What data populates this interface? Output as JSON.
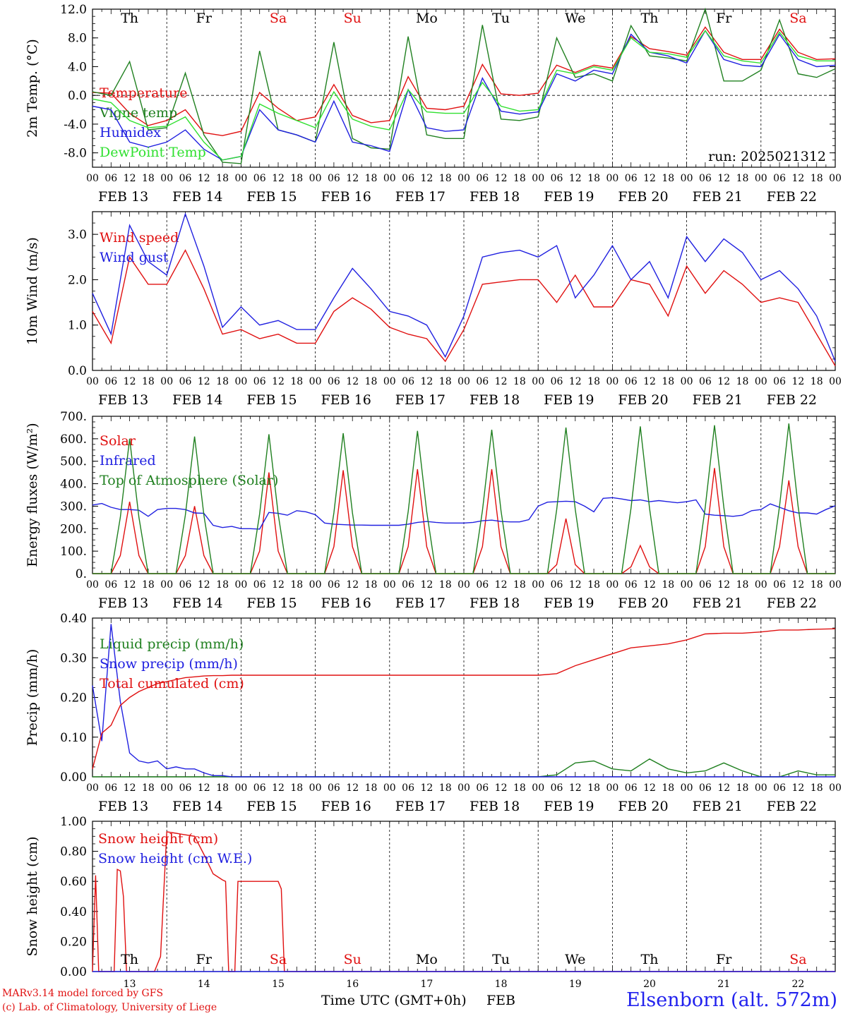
{
  "run_label": "run: 2025021312",
  "x_hour_ticks": [
    "00",
    "06",
    "12",
    "18"
  ],
  "x_final_tick": "00",
  "dates": [
    "FEB 13",
    "FEB 14",
    "FEB 15",
    "FEB 16",
    "FEB 17",
    "FEB 18",
    "FEB 19",
    "FEB 20",
    "FEB 21",
    "FEB 22"
  ],
  "weekdays": [
    "Th",
    "Fr",
    "Sa",
    "Su",
    "Mo",
    "Tu",
    "We",
    "Th",
    "Fr",
    "Sa"
  ],
  "weekday_colors": [
    "#000000",
    "#000000",
    "#e01010",
    "#e01010",
    "#000000",
    "#000000",
    "#000000",
    "#000000",
    "#000000",
    "#e01010"
  ],
  "day_numbers": [
    "13",
    "14",
    "15",
    "16",
    "17",
    "18",
    "19",
    "20",
    "21",
    "22"
  ],
  "footer": {
    "credit_line1": "MARv3.14 model forced by GFS",
    "credit_line2": "(c) Lab. of Climatology, University of Liege",
    "axis_title": "Time UTC (GMT+0h)",
    "month": "FEB",
    "station": "Elsenborn (alt. 572m)"
  },
  "colors": {
    "red": "#e01010",
    "green": "#208020",
    "blue": "#2020e0",
    "lightgreen": "#30e030"
  },
  "chart_data": [
    {
      "type": "line",
      "ylabel": "2m Temp. (°C)",
      "ylim": [
        -10,
        12
      ],
      "yticks": [
        -8,
        -4,
        0,
        4,
        8,
        12
      ],
      "ytick_labels": [
        "-8.0",
        "-4.0",
        "0.0",
        "4.0",
        "8.0",
        "12.0"
      ],
      "zero_line": true,
      "x_hours": [
        0,
        6,
        12,
        18,
        24,
        30,
        36,
        42,
        48,
        54,
        60,
        66,
        72,
        78,
        84,
        90,
        96,
        102,
        108,
        114,
        120,
        126,
        132,
        138,
        144,
        150,
        156,
        162,
        168,
        174,
        180,
        186,
        192,
        198,
        204,
        210,
        216,
        222,
        228,
        234,
        240
      ],
      "series": [
        {
          "name": "Temperature",
          "color": "#e01010",
          "values": [
            0.4,
            0.3,
            -2.5,
            -4.2,
            -3.5,
            -2.0,
            -5.2,
            -5.6,
            -5.0,
            0.4,
            -1.8,
            -3.5,
            -3.0,
            1.5,
            -2.8,
            -3.8,
            -3.5,
            2.6,
            -1.8,
            -2.0,
            -1.5,
            4.3,
            0.2,
            0.0,
            0.3,
            4.2,
            3.2,
            4.2,
            3.8,
            8.2,
            6.5,
            6.1,
            5.6,
            9.5,
            6.0,
            5.0,
            5.0,
            9.2,
            6.0,
            5.0,
            5.1
          ]
        },
        {
          "name": "Vigne temp",
          "color": "#208020",
          "values": [
            0.5,
            0.0,
            4.7,
            -4.8,
            -4.5,
            3.1,
            -5.5,
            -9.3,
            -9.5,
            6.2,
            -4.8,
            -5.5,
            -6.5,
            7.4,
            -6.0,
            -7.3,
            -7.5,
            8.2,
            -5.5,
            -6.0,
            -6.0,
            9.8,
            -3.3,
            -3.5,
            -3.0,
            8.0,
            2.5,
            3.0,
            2.0,
            9.7,
            5.5,
            5.2,
            4.8,
            12.0,
            2.0,
            2.0,
            3.5,
            10.5,
            3.0,
            2.5,
            3.7
          ]
        },
        {
          "name": "Humidex",
          "color": "#2020e0",
          "values": [
            -1.5,
            -2.0,
            -6.5,
            -7.2,
            -6.5,
            -4.8,
            -7.5,
            -9.0,
            -8.5,
            -2.0,
            -4.8,
            -5.5,
            -6.5,
            -0.8,
            -6.5,
            -7.0,
            -7.8,
            0.8,
            -4.5,
            -5.0,
            -4.8,
            2.4,
            -2.2,
            -2.6,
            -2.3,
            3.0,
            2.0,
            3.5,
            3.0,
            8.5,
            6.0,
            5.5,
            4.5,
            9.0,
            5.0,
            4.2,
            4.0,
            8.5,
            5.0,
            4.0,
            4.2
          ]
        },
        {
          "name": "DewPoint Temp",
          "color": "#30e030",
          "values": [
            -0.5,
            -1.0,
            -3.5,
            -4.5,
            -4.3,
            -3.0,
            -6.5,
            -9.0,
            -8.5,
            -1.2,
            -2.5,
            -3.5,
            -4.5,
            0.5,
            -3.3,
            -4.3,
            -4.8,
            0.8,
            -2.3,
            -2.5,
            -2.5,
            1.8,
            -1.5,
            -2.2,
            -2.0,
            3.5,
            3.0,
            4.0,
            3.5,
            8.0,
            6.0,
            5.8,
            5.3,
            9.0,
            5.5,
            4.8,
            4.5,
            8.8,
            5.5,
            4.8,
            4.8
          ]
        }
      ]
    },
    {
      "type": "line",
      "ylabel": "10m Wind (m/s)",
      "ylim": [
        0,
        3.5
      ],
      "yticks": [
        0,
        1,
        2,
        3
      ],
      "ytick_labels": [
        "0.0",
        "1.0",
        "2.0",
        "3.0"
      ],
      "x_hours": [
        0,
        6,
        12,
        18,
        24,
        30,
        36,
        42,
        48,
        54,
        60,
        66,
        72,
        78,
        84,
        90,
        96,
        102,
        108,
        114,
        120,
        126,
        132,
        138,
        144,
        150,
        156,
        162,
        168,
        174,
        180,
        186,
        192,
        198,
        204,
        210,
        216,
        222,
        228,
        234,
        240
      ],
      "series": [
        {
          "name": "Wind speed",
          "color": "#e01010",
          "values": [
            1.3,
            0.6,
            2.5,
            1.9,
            1.9,
            2.65,
            1.8,
            0.8,
            0.9,
            0.7,
            0.8,
            0.6,
            0.6,
            1.3,
            1.6,
            1.35,
            0.95,
            0.8,
            0.7,
            0.2,
            0.9,
            1.9,
            1.95,
            2.0,
            2.0,
            1.5,
            2.1,
            1.4,
            1.4,
            2.0,
            1.9,
            1.2,
            2.3,
            1.7,
            2.2,
            1.9,
            1.5,
            1.6,
            1.5,
            0.8,
            0.1
          ]
        },
        {
          "name": "Wind gust",
          "color": "#2020e0",
          "values": [
            1.7,
            0.8,
            3.2,
            2.4,
            2.1,
            3.45,
            2.3,
            0.95,
            1.4,
            1.0,
            1.1,
            0.9,
            0.9,
            1.6,
            2.25,
            1.8,
            1.3,
            1.2,
            1.0,
            0.3,
            1.2,
            2.5,
            2.6,
            2.65,
            2.5,
            2.75,
            1.6,
            2.1,
            2.75,
            2.0,
            2.4,
            1.6,
            2.95,
            2.4,
            2.9,
            2.6,
            2.0,
            2.2,
            1.8,
            1.2,
            0.2
          ]
        }
      ]
    },
    {
      "type": "line",
      "ylabel": "Energy fluxes (W/m²)",
      "ylim": [
        0,
        700
      ],
      "yticks": [
        0,
        100,
        200,
        300,
        400,
        500,
        600,
        700
      ],
      "ytick_labels": [
        "0.",
        "100.",
        "200.",
        "300.",
        "400.",
        "500.",
        "600.",
        "700."
      ],
      "x_hours": [
        0,
        3,
        6,
        9,
        12,
        15,
        18,
        21,
        24,
        27,
        30,
        33,
        36,
        39,
        42,
        45,
        48,
        51,
        54,
        57,
        60,
        63,
        66,
        69,
        72,
        75,
        78,
        81,
        84,
        87,
        90,
        93,
        96,
        99,
        102,
        105,
        108,
        111,
        114,
        117,
        120,
        123,
        126,
        129,
        132,
        135,
        138,
        141,
        144,
        147,
        150,
        153,
        156,
        159,
        162,
        165,
        168,
        171,
        174,
        177,
        180,
        183,
        186,
        189,
        192,
        195,
        198,
        201,
        204,
        207,
        210,
        213,
        216,
        219,
        222,
        225,
        228,
        231,
        234,
        237,
        240
      ],
      "series": [
        {
          "name": "Solar",
          "color": "#e01010",
          "values": [
            0,
            0,
            0,
            80,
            320,
            80,
            0,
            0,
            0,
            0,
            80,
            300,
            80,
            0,
            0,
            0,
            0,
            0,
            100,
            450,
            100,
            0,
            0,
            0,
            0,
            0,
            120,
            460,
            120,
            0,
            0,
            0,
            0,
            0,
            120,
            465,
            120,
            0,
            0,
            0,
            0,
            0,
            120,
            465,
            120,
            0,
            0,
            0,
            0,
            0,
            40,
            245,
            40,
            0,
            0,
            0,
            0,
            0,
            30,
            125,
            30,
            0,
            0,
            0,
            0,
            0,
            120,
            470,
            120,
            0,
            0,
            0,
            0,
            0,
            120,
            415,
            120,
            0,
            0,
            0,
            0
          ]
        },
        {
          "name": "Infrared",
          "color": "#2020e0",
          "values": [
            305,
            312,
            295,
            285,
            285,
            282,
            255,
            285,
            290,
            290,
            285,
            270,
            268,
            215,
            205,
            210,
            200,
            200,
            198,
            272,
            268,
            260,
            280,
            275,
            262,
            225,
            220,
            218,
            216,
            216,
            215,
            215,
            215,
            215,
            220,
            228,
            232,
            228,
            225,
            225,
            225,
            228,
            235,
            238,
            232,
            230,
            230,
            240,
            300,
            318,
            320,
            322,
            320,
            300,
            275,
            335,
            338,
            332,
            325,
            328,
            320,
            325,
            320,
            315,
            320,
            328,
            265,
            260,
            258,
            255,
            260,
            280,
            285,
            310,
            295,
            280,
            270,
            270,
            265,
            285,
            302
          ]
        },
        {
          "name": "Top of Atmosphere (Solar)",
          "color": "#208020",
          "values": [
            0,
            0,
            0,
            250,
            600,
            250,
            0,
            0,
            0,
            0,
            260,
            610,
            260,
            0,
            0,
            0,
            0,
            0,
            265,
            620,
            265,
            0,
            0,
            0,
            0,
            0,
            270,
            625,
            270,
            0,
            0,
            0,
            0,
            0,
            275,
            635,
            275,
            0,
            0,
            0,
            0,
            0,
            280,
            640,
            280,
            0,
            0,
            0,
            0,
            0,
            285,
            650,
            285,
            0,
            0,
            0,
            0,
            0,
            290,
            655,
            290,
            0,
            0,
            0,
            0,
            0,
            295,
            660,
            295,
            0,
            0,
            0,
            0,
            0,
            300,
            668,
            300,
            0,
            0,
            0,
            0
          ]
        }
      ]
    },
    {
      "type": "line",
      "ylabel": "Precip (mm/h)",
      "ylim": [
        0,
        0.4
      ],
      "yticks": [
        0,
        0.1,
        0.2,
        0.3,
        0.4
      ],
      "ytick_labels": [
        "0.00",
        "0.10",
        "0.20",
        "0.30",
        "0.40"
      ],
      "x_hours": [
        0,
        3,
        6,
        9,
        12,
        15,
        18,
        21,
        24,
        27,
        30,
        33,
        36,
        39,
        42,
        45,
        48,
        60,
        72,
        84,
        96,
        108,
        120,
        132,
        144,
        150,
        156,
        162,
        168,
        174,
        180,
        186,
        192,
        198,
        204,
        210,
        216,
        222,
        228,
        234,
        240
      ],
      "series": [
        {
          "name": "Liquid precip (mm/h)",
          "color": "#208020",
          "values": [
            0,
            0,
            0,
            0,
            0,
            0,
            0,
            0,
            0,
            0,
            0,
            0,
            0,
            0,
            0,
            0,
            0,
            0,
            0,
            0,
            0,
            0,
            0,
            0,
            0,
            0.005,
            0.035,
            0.04,
            0.02,
            0.015,
            0.045,
            0.02,
            0.01,
            0.015,
            0.035,
            0.015,
            0,
            0,
            0.015,
            0.005,
            0.005
          ]
        },
        {
          "name": "Snow precip (mm/h)",
          "color": "#2020e0",
          "values": [
            0.23,
            0.09,
            0.385,
            0.19,
            0.06,
            0.04,
            0.035,
            0.04,
            0.02,
            0.025,
            0.02,
            0.02,
            0.01,
            0.003,
            0.003,
            0,
            0,
            0,
            0,
            0,
            0,
            0,
            0,
            0,
            0,
            0,
            0,
            0,
            0,
            0,
            0,
            0,
            0,
            0,
            0,
            0,
            0,
            0,
            0,
            0,
            0
          ]
        },
        {
          "name": "Total cumulated (cm)",
          "color": "#e01010",
          "values": [
            0.02,
            0.11,
            0.13,
            0.18,
            0.2,
            0.215,
            0.225,
            0.235,
            0.24,
            0.245,
            0.25,
            0.252,
            0.254,
            0.255,
            0.255,
            0.256,
            0.256,
            0.256,
            0.256,
            0.256,
            0.256,
            0.256,
            0.256,
            0.256,
            0.256,
            0.26,
            0.28,
            0.295,
            0.31,
            0.325,
            0.33,
            0.335,
            0.345,
            0.36,
            0.362,
            0.362,
            0.365,
            0.37,
            0.37,
            0.372,
            0.373
          ]
        }
      ]
    },
    {
      "type": "line",
      "ylabel": "Snow height (cm)",
      "ylim": [
        0,
        1
      ],
      "yticks": [
        0,
        0.2,
        0.4,
        0.6,
        0.8,
        1.0
      ],
      "ytick_labels": [
        "0.00",
        "0.20",
        "0.40",
        "0.60",
        "0.80",
        "1.00"
      ],
      "x_hours": [
        0,
        1,
        2,
        3,
        4,
        5,
        6,
        7,
        8,
        9,
        10,
        11,
        12,
        13,
        14,
        15,
        16,
        18,
        20,
        22,
        24,
        27,
        30,
        33,
        36,
        39,
        42,
        43,
        44,
        45,
        46,
        47,
        48,
        50,
        54,
        58,
        60,
        61,
        62,
        63,
        66,
        72,
        96,
        120,
        144,
        168,
        192,
        216,
        240
      ],
      "series": [
        {
          "name": "Snow height (cm)",
          "color": "#e01010",
          "values": [
            0,
            0.64,
            0,
            0,
            0,
            0,
            0,
            0,
            0.68,
            0.67,
            0.5,
            0,
            0,
            0,
            0,
            0,
            0,
            0,
            0,
            0.1,
            0.93,
            0.92,
            0.91,
            0.9,
            0.78,
            0.65,
            0.61,
            0.6,
            0,
            0,
            0,
            0.6,
            0.6,
            0.6,
            0.6,
            0.6,
            0.6,
            0.55,
            0,
            0,
            0,
            0,
            0,
            0,
            0,
            0,
            0,
            0,
            0
          ]
        },
        {
          "name": "Snow height (cm W.E.)",
          "color": "#2020e0",
          "values": [
            0,
            0,
            0,
            0,
            0,
            0,
            0,
            0,
            0,
            0,
            0,
            0,
            0,
            0,
            0,
            0,
            0,
            0,
            0,
            0,
            0,
            0,
            0,
            0,
            0,
            0,
            0,
            0,
            0,
            0,
            0,
            0,
            0,
            0,
            0,
            0,
            0,
            0,
            0,
            0,
            0,
            0,
            0,
            0,
            0,
            0,
            0,
            0,
            0
          ]
        }
      ]
    }
  ]
}
